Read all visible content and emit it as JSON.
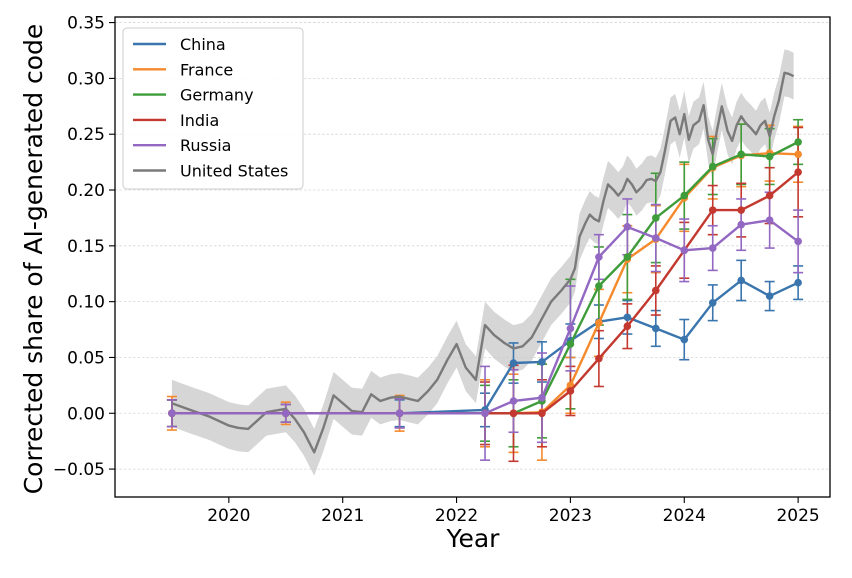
{
  "chart_data": {
    "type": "line",
    "title": "",
    "xlabel": "Year",
    "ylabel": "Corrected share of AI-generated code",
    "xlim": [
      2019.0,
      2025.28
    ],
    "ylim": [
      -0.075,
      0.355
    ],
    "xticks": [
      2020,
      2021,
      2022,
      2023,
      2024,
      2025
    ],
    "xtick_labels": [
      "2020",
      "2021",
      "2022",
      "2023",
      "2024",
      "2025"
    ],
    "yticks": [
      -0.05,
      0.0,
      0.05,
      0.1,
      0.15,
      0.2,
      0.25,
      0.3,
      0.35
    ],
    "ytick_labels": [
      "−0.05",
      "0.00",
      "0.05",
      "0.10",
      "0.15",
      "0.20",
      "0.25",
      "0.30",
      "0.35"
    ],
    "grid": true,
    "legend_position": "top-left",
    "series": [
      {
        "name": "China",
        "color": "#3a75ad",
        "x": [
          2019.5,
          2020.5,
          2021.5,
          2022.25,
          2022.5,
          2022.75,
          2023.0,
          2023.25,
          2023.5,
          2023.75,
          2024.0,
          2024.25,
          2024.5,
          2024.75,
          2025.0
        ],
        "y": [
          0.0,
          0.0,
          0.0,
          0.003,
          0.045,
          0.046,
          0.065,
          0.082,
          0.086,
          0.076,
          0.066,
          0.099,
          0.119,
          0.105,
          0.117
        ],
        "err": [
          0.012,
          0.008,
          0.012,
          0.015,
          0.018,
          0.018,
          0.015,
          0.015,
          0.015,
          0.016,
          0.018,
          0.016,
          0.018,
          0.013,
          0.015
        ]
      },
      {
        "name": "France",
        "color": "#f58a2d",
        "x": [
          2019.5,
          2020.5,
          2021.5,
          2022.25,
          2022.5,
          2022.75,
          2023.0,
          2023.25,
          2023.5,
          2023.75,
          2024.0,
          2024.25,
          2024.5,
          2024.75,
          2025.0
        ],
        "y": [
          0.0,
          0.0,
          0.0,
          0.0,
          0.0,
          0.001,
          0.025,
          0.081,
          0.138,
          0.156,
          0.193,
          0.22,
          0.231,
          0.233,
          0.232
        ],
        "err": [
          0.015,
          0.01,
          0.016,
          0.03,
          0.035,
          0.043,
          0.025,
          0.03,
          0.03,
          0.03,
          0.03,
          0.028,
          0.028,
          0.025,
          0.025
        ]
      },
      {
        "name": "Germany",
        "color": "#3f9c3a",
        "x": [
          2019.5,
          2020.5,
          2021.5,
          2022.25,
          2022.5,
          2022.75,
          2023.0,
          2023.25,
          2023.5,
          2023.75,
          2024.0,
          2024.25,
          2024.5,
          2024.75,
          2025.0
        ],
        "y": [
          0.0,
          0.0,
          0.0,
          0.0,
          0.0,
          0.011,
          0.062,
          0.114,
          0.14,
          0.175,
          0.195,
          0.221,
          0.232,
          0.23,
          0.243
        ],
        "err": [
          0.012,
          0.008,
          0.013,
          0.025,
          0.03,
          0.033,
          0.058,
          0.035,
          0.038,
          0.04,
          0.03,
          0.025,
          0.027,
          0.025,
          0.02
        ]
      },
      {
        "name": "India",
        "color": "#c3382f",
        "x": [
          2019.5,
          2020.5,
          2021.5,
          2022.25,
          2022.5,
          2022.75,
          2023.0,
          2023.25,
          2023.5,
          2023.75,
          2024.0,
          2024.25,
          2024.5,
          2024.75,
          2025.0
        ],
        "y": [
          0.0,
          0.0,
          0.0,
          0.0,
          0.0,
          0.0,
          0.02,
          0.049,
          0.078,
          0.11,
          0.146,
          0.182,
          0.182,
          0.195,
          0.216
        ],
        "err": [
          0.012,
          0.008,
          0.013,
          0.028,
          0.043,
          0.03,
          0.022,
          0.025,
          0.02,
          0.022,
          0.025,
          0.022,
          0.024,
          0.025,
          0.04
        ]
      },
      {
        "name": "Russia",
        "color": "#9268c2",
        "x": [
          2019.5,
          2020.5,
          2021.5,
          2022.25,
          2022.5,
          2022.75,
          2023.0,
          2023.25,
          2023.5,
          2023.75,
          2024.0,
          2024.25,
          2024.5,
          2024.75,
          2025.0
        ],
        "y": [
          0.0,
          0.0,
          0.0,
          0.0,
          0.011,
          0.014,
          0.076,
          0.14,
          0.167,
          0.157,
          0.146,
          0.148,
          0.169,
          0.173,
          0.154
        ],
        "err": [
          0.012,
          0.008,
          0.013,
          0.042,
          0.028,
          0.04,
          0.038,
          0.02,
          0.025,
          0.03,
          0.028,
          0.02,
          0.023,
          0.025,
          0.028
        ]
      },
      {
        "name": "United States",
        "color": "#7a7a7a",
        "x": [
          2019.5,
          2019.66,
          2019.83,
          2020.0,
          2020.08,
          2020.17,
          2020.33,
          2020.5,
          2020.58,
          2020.66,
          2020.75,
          2020.83,
          2020.92,
          2021.0,
          2021.08,
          2021.17,
          2021.25,
          2021.33,
          2021.42,
          2021.5,
          2021.58,
          2021.66,
          2021.75,
          2021.83,
          2021.92,
          2022.0,
          2022.08,
          2022.17,
          2022.25,
          2022.33,
          2022.42,
          2022.5,
          2022.58,
          2022.66,
          2022.75,
          2022.83,
          2022.92,
          2023.0,
          2023.04,
          2023.08,
          2023.13,
          2023.17,
          2023.21,
          2023.25,
          2023.29,
          2023.33,
          2023.38,
          2023.42,
          2023.46,
          2023.5,
          2023.54,
          2023.58,
          2023.63,
          2023.67,
          2023.71,
          2023.75,
          2023.79,
          2023.83,
          2023.88,
          2023.92,
          2023.96,
          2024.0,
          2024.04,
          2024.08,
          2024.13,
          2024.17,
          2024.21,
          2024.25,
          2024.29,
          2024.33,
          2024.38,
          2024.42,
          2024.46,
          2024.5,
          2024.54,
          2024.58,
          2024.63,
          2024.67,
          2024.71,
          2024.75,
          2024.79,
          2024.83,
          2024.88,
          2024.92,
          2024.96
        ],
        "y": [
          0.009,
          0.003,
          -0.003,
          -0.011,
          -0.013,
          -0.014,
          0.001,
          0.004,
          -0.005,
          -0.017,
          -0.035,
          -0.013,
          0.016,
          0.009,
          0.002,
          0.001,
          0.017,
          0.011,
          0.014,
          0.015,
          0.013,
          0.011,
          0.02,
          0.03,
          0.048,
          0.062,
          0.041,
          0.03,
          0.079,
          0.07,
          0.063,
          0.058,
          0.06,
          0.068,
          0.085,
          0.1,
          0.11,
          0.12,
          0.13,
          0.158,
          0.17,
          0.178,
          0.174,
          0.172,
          0.19,
          0.205,
          0.2,
          0.195,
          0.2,
          0.21,
          0.205,
          0.198,
          0.203,
          0.209,
          0.21,
          0.208,
          0.216,
          0.235,
          0.262,
          0.265,
          0.25,
          0.268,
          0.245,
          0.258,
          0.262,
          0.276,
          0.245,
          0.232,
          0.255,
          0.275,
          0.253,
          0.244,
          0.258,
          0.266,
          0.26,
          0.256,
          0.25,
          0.258,
          0.262,
          0.248,
          0.266,
          0.28,
          0.305,
          0.304,
          0.302
        ],
        "band": 0.021
      }
    ]
  }
}
